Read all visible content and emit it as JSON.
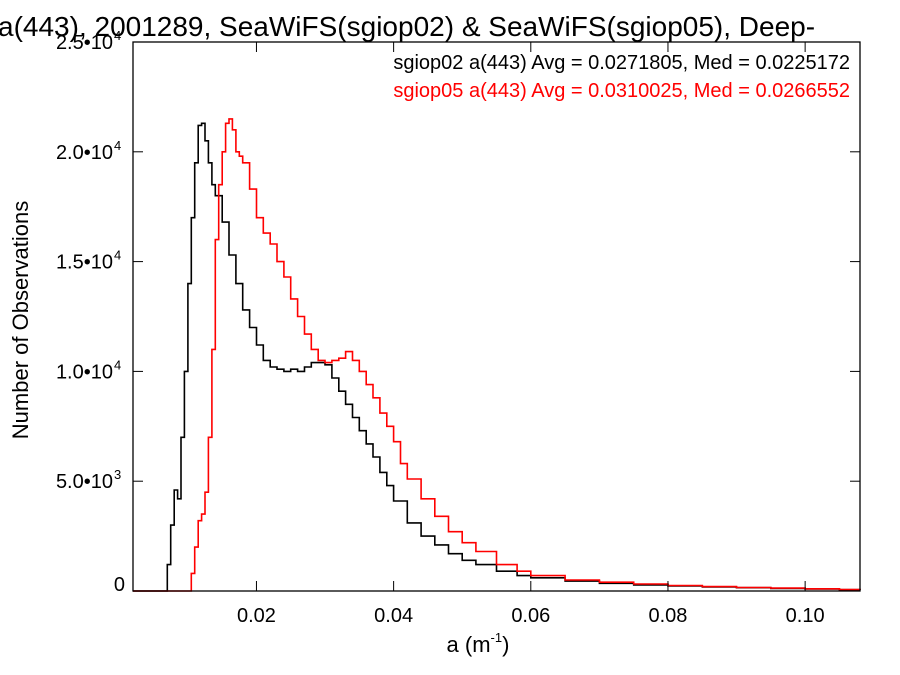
{
  "chart_data": {
    "type": "line",
    "title": "a(443), 2001289, SeaWiFS(sgiop02) & SeaWiFS(sgiop05), Deep-",
    "xlabel": "a (m",
    "xlabel_sup": "-1",
    "xlabel_tail": ")",
    "ylabel": "Number of Observations",
    "xlim": [
      0.002,
      0.108
    ],
    "ylim": [
      0,
      25000
    ],
    "x_ticks": [
      {
        "value": 0.02,
        "label": "0.02"
      },
      {
        "value": 0.04,
        "label": "0.04"
      },
      {
        "value": 0.06,
        "label": "0.06"
      },
      {
        "value": 0.08,
        "label": "0.08"
      },
      {
        "value": 0.1,
        "label": "0.10"
      }
    ],
    "y_ticks": [
      {
        "value": 0,
        "label": "0",
        "sup": ""
      },
      {
        "value": 5000,
        "label": "5.0•10",
        "sup": "3"
      },
      {
        "value": 10000,
        "label": "1.0•10",
        "sup": "4"
      },
      {
        "value": 15000,
        "label": "1.5•10",
        "sup": "4"
      },
      {
        "value": 20000,
        "label": "2.0•10",
        "sup": "4"
      },
      {
        "value": 25000,
        "label": "2.5•10",
        "sup": "4"
      }
    ],
    "grid": false,
    "legend_placement": "top-right",
    "series": [
      {
        "name": "sgiop02 a(443) Avg = 0.0271805, Med = 0.0225172",
        "color": "#000000",
        "x": [
          0.002,
          0.0065,
          0.007,
          0.0075,
          0.008,
          0.0085,
          0.009,
          0.0095,
          0.01,
          0.0105,
          0.011,
          0.0115,
          0.012,
          0.0125,
          0.013,
          0.0135,
          0.014,
          0.015,
          0.016,
          0.017,
          0.018,
          0.019,
          0.02,
          0.021,
          0.022,
          0.023,
          0.024,
          0.025,
          0.026,
          0.027,
          0.028,
          0.029,
          0.03,
          0.031,
          0.032,
          0.033,
          0.034,
          0.035,
          0.036,
          0.037,
          0.038,
          0.039,
          0.04,
          0.042,
          0.044,
          0.046,
          0.048,
          0.05,
          0.052,
          0.055,
          0.058,
          0.06,
          0.065,
          0.07,
          0.075,
          0.08,
          0.085,
          0.09,
          0.095,
          0.1,
          0.105,
          0.108
        ],
        "values": [
          0,
          0,
          1200,
          3000,
          4600,
          4200,
          7000,
          10000,
          14000,
          17000,
          19500,
          21200,
          21300,
          20500,
          19500,
          18500,
          18000,
          16800,
          15300,
          14000,
          12800,
          12000,
          11200,
          10500,
          10200,
          10100,
          10000,
          10100,
          10000,
          10200,
          10400,
          10400,
          10300,
          9700,
          9100,
          8500,
          7900,
          7300,
          6700,
          6100,
          5400,
          4800,
          4100,
          3100,
          2500,
          2100,
          1700,
          1400,
          1200,
          900,
          700,
          600,
          450,
          350,
          280,
          230,
          180,
          150,
          120,
          90,
          60,
          40
        ]
      },
      {
        "name": "sgiop05 a(443) Avg = 0.0310025, Med = 0.0266552",
        "color": "#ff0000",
        "x": [
          0.002,
          0.01,
          0.0105,
          0.011,
          0.0115,
          0.012,
          0.0125,
          0.013,
          0.0135,
          0.014,
          0.0145,
          0.015,
          0.0155,
          0.016,
          0.0165,
          0.017,
          0.0175,
          0.018,
          0.019,
          0.02,
          0.021,
          0.022,
          0.023,
          0.024,
          0.025,
          0.026,
          0.027,
          0.028,
          0.029,
          0.03,
          0.031,
          0.032,
          0.033,
          0.034,
          0.035,
          0.036,
          0.037,
          0.038,
          0.039,
          0.04,
          0.041,
          0.042,
          0.044,
          0.046,
          0.048,
          0.05,
          0.052,
          0.055,
          0.058,
          0.06,
          0.065,
          0.07,
          0.075,
          0.08,
          0.085,
          0.09,
          0.095,
          0.1,
          0.105,
          0.108
        ],
        "values": [
          0,
          0,
          800,
          2000,
          3200,
          3500,
          4500,
          7000,
          11000,
          16000,
          18500,
          20000,
          21300,
          21500,
          21000,
          20000,
          19800,
          19500,
          18300,
          17000,
          16300,
          15800,
          15000,
          14300,
          13300,
          12500,
          11700,
          11000,
          10500,
          10400,
          10500,
          10600,
          10900,
          10500,
          10000,
          9400,
          8800,
          8100,
          7500,
          6800,
          5800,
          5100,
          4200,
          3400,
          2700,
          2200,
          1800,
          1200,
          900,
          700,
          500,
          400,
          320,
          250,
          200,
          160,
          130,
          100,
          70,
          50
        ]
      }
    ]
  }
}
